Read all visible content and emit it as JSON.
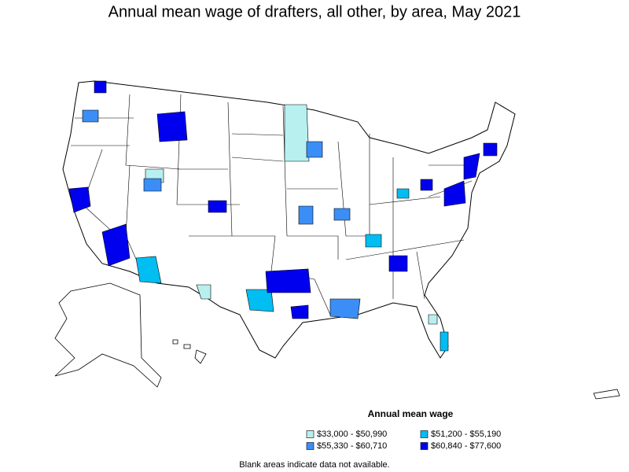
{
  "title": "Annual mean wage of drafters, all other, by area, May 2021",
  "legend": {
    "title": "Annual mean wage",
    "items": [
      {
        "label": "$33,000 - $50,990",
        "color": "#b8f0f0"
      },
      {
        "label": "$51,200 - $55,190",
        "color": "#00bdf2"
      },
      {
        "label": "$55,330 - $60,710",
        "color": "#3a8ef5"
      },
      {
        "label": "$60,840 - $77,600",
        "color": "#0000ee"
      }
    ]
  },
  "footnote": "Blank areas indicate data not available."
}
